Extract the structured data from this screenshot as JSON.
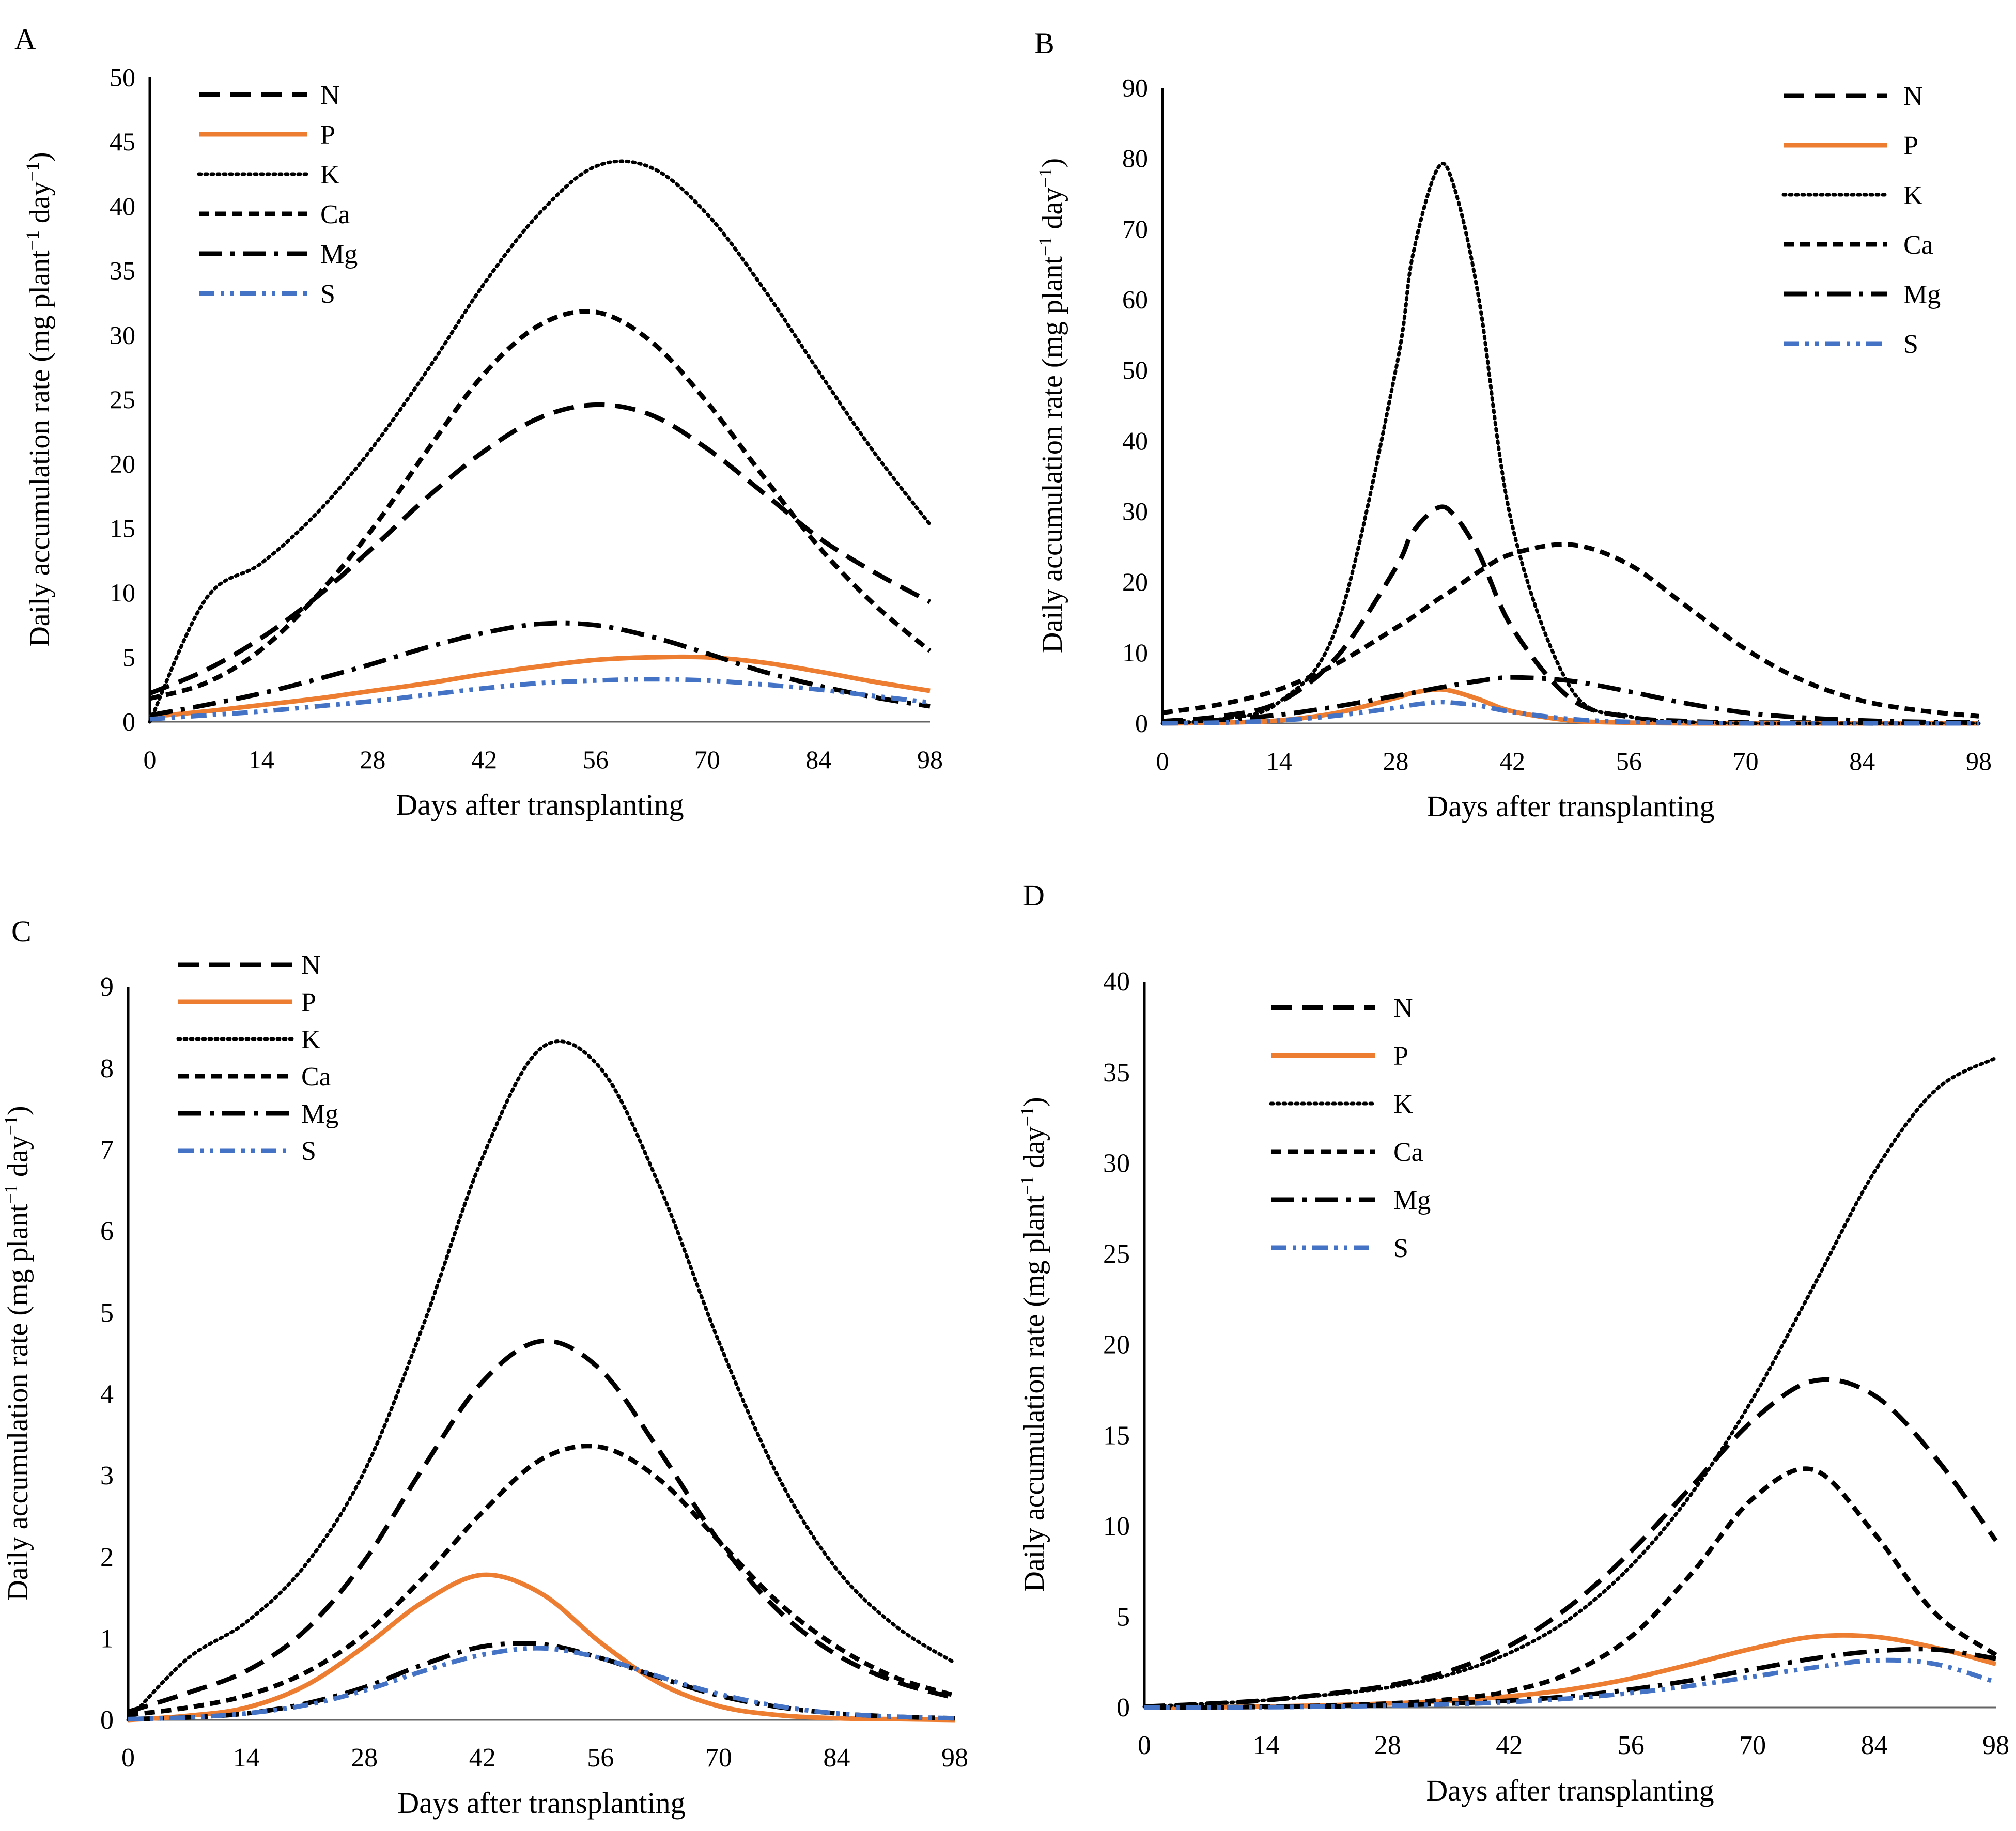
{
  "figure": {
    "xlabel": "Days after transplanting",
    "ylabel_main": "Daily accumulation rate (mg plant",
    "ylabel_sup1": "−1",
    "ylabel_mid": " day",
    "ylabel_sup2": "−1",
    "ylabel_end": ")"
  },
  "chart_data": [
    {
      "panel": "A",
      "type": "line",
      "xlabel": "Days after transplanting",
      "ylabel": "Daily accumulation rate (mg plant−1 day−1)",
      "xticks": [
        0,
        14,
        28,
        42,
        56,
        70,
        84,
        98
      ],
      "yticks": [
        0,
        5,
        10,
        15,
        20,
        25,
        30,
        35,
        40,
        45,
        50
      ],
      "xlim": [
        0,
        98
      ],
      "ylim": [
        0,
        50
      ],
      "legend_position": "top-left",
      "x": [
        0,
        7,
        14,
        21,
        28,
        35,
        42,
        49,
        56,
        63,
        70,
        77,
        84,
        91,
        98
      ],
      "series": [
        {
          "name": "N",
          "style": "dash",
          "values": [
            2.2,
            4.0,
            6.5,
            9.7,
            13.5,
            17.5,
            21.0,
            23.6,
            24.6,
            23.8,
            21.2,
            17.8,
            14.3,
            11.6,
            9.3
          ]
        },
        {
          "name": "P",
          "style": "solid",
          "values": [
            0.4,
            0.8,
            1.3,
            1.8,
            2.4,
            3.0,
            3.7,
            4.3,
            4.8,
            5.0,
            5.0,
            4.6,
            3.9,
            3.1,
            2.4
          ]
        },
        {
          "name": "K",
          "style": "dot",
          "values": [
            0.0,
            9.5,
            12.3,
            16.2,
            21.3,
            27.4,
            34.0,
            39.5,
            43.1,
            43.0,
            39.4,
            33.7,
            27.2,
            20.9,
            15.3
          ]
        },
        {
          "name": "Ca",
          "style": "shortdash",
          "values": [
            1.8,
            3.0,
            5.6,
            9.8,
            15.0,
            21.2,
            27.0,
            30.8,
            31.8,
            29.5,
            24.8,
            19.1,
            13.6,
            9.1,
            5.5
          ]
        },
        {
          "name": "Mg",
          "style": "dashdot",
          "values": [
            0.5,
            1.3,
            2.2,
            3.3,
            4.5,
            5.8,
            6.9,
            7.6,
            7.5,
            6.6,
            5.3,
            3.9,
            2.8,
            1.9,
            1.2
          ]
        },
        {
          "name": "S",
          "style": "dashdotdot",
          "values": [
            0.2,
            0.5,
            0.8,
            1.2,
            1.6,
            2.1,
            2.6,
            3.0,
            3.2,
            3.3,
            3.2,
            2.9,
            2.5,
            2.0,
            1.5
          ]
        }
      ]
    },
    {
      "panel": "B",
      "type": "line",
      "xlabel": "Days after transplanting",
      "ylabel": "Daily accumulation rate (mg plant−1 day−1)",
      "xticks": [
        0,
        14,
        28,
        42,
        56,
        70,
        84,
        98
      ],
      "yticks": [
        0,
        10,
        20,
        30,
        40,
        50,
        60,
        70,
        80,
        90
      ],
      "xlim": [
        0,
        98
      ],
      "ylim": [
        0,
        90
      ],
      "legend_position": "top-right",
      "x": [
        0,
        7,
        14,
        21,
        28,
        30,
        33,
        35,
        38,
        42,
        49,
        56,
        63,
        70,
        77,
        84,
        91,
        98
      ],
      "series": [
        {
          "name": "N",
          "style": "dash",
          "values": [
            0.3,
            1.0,
            3.0,
            9.5,
            22.0,
            27.0,
            30.5,
            29.5,
            24.0,
            13.5,
            3.5,
            0.9,
            0.3,
            0.1,
            0.1,
            0.0,
            0.0,
            0.0
          ]
        },
        {
          "name": "P",
          "style": "solid",
          "values": [
            0.0,
            0.1,
            0.4,
            1.5,
            3.6,
            4.3,
            4.8,
            4.5,
            3.4,
            1.7,
            0.4,
            0.1,
            0.0,
            0.0,
            0.0,
            0.0,
            0.0,
            0.0
          ]
        },
        {
          "name": "K",
          "style": "dot",
          "values": [
            0.0,
            0.6,
            3.0,
            14.0,
            50.0,
            66.0,
            78.5,
            76.0,
            60.0,
            28.0,
            5.0,
            1.0,
            0.2,
            0.0,
            0.0,
            0.0,
            0.0,
            0.0
          ]
        },
        {
          "name": "Ca",
          "style": "shortdash",
          "values": [
            1.5,
            2.7,
            4.8,
            8.5,
            13.5,
            15.0,
            17.5,
            19.0,
            21.5,
            24.0,
            25.3,
            22.5,
            16.5,
            10.5,
            6.0,
            3.2,
            1.8,
            1.0
          ]
        },
        {
          "name": "Mg",
          "style": "dashdot",
          "values": [
            0.2,
            0.5,
            1.2,
            2.4,
            3.9,
            4.3,
            5.0,
            5.4,
            6.0,
            6.5,
            6.0,
            4.5,
            2.8,
            1.5,
            0.8,
            0.4,
            0.2,
            0.1
          ]
        },
        {
          "name": "S",
          "style": "dashdotdot",
          "values": [
            0.0,
            0.1,
            0.4,
            1.1,
            2.2,
            2.6,
            3.0,
            2.9,
            2.5,
            1.6,
            0.6,
            0.2,
            0.1,
            0.0,
            0.0,
            0.0,
            0.0,
            0.0
          ]
        }
      ]
    },
    {
      "panel": "C",
      "type": "line",
      "xlabel": "Days after transplanting",
      "ylabel": "Daily accumulation rate (mg plant−1 day−1)",
      "xticks": [
        0,
        14,
        28,
        42,
        56,
        70,
        84,
        98
      ],
      "yticks": [
        0,
        1,
        2,
        3,
        4,
        5,
        6,
        7,
        8,
        9
      ],
      "xlim": [
        0,
        98
      ],
      "ylim": [
        0,
        9
      ],
      "legend_position": "top-left",
      "x": [
        0,
        7,
        14,
        21,
        28,
        35,
        42,
        49,
        56,
        63,
        70,
        77,
        84,
        91,
        98
      ],
      "series": [
        {
          "name": "N",
          "style": "dash",
          "values": [
            0.1,
            0.33,
            0.6,
            1.1,
            1.95,
            3.1,
            4.15,
            4.65,
            4.3,
            3.3,
            2.2,
            1.35,
            0.8,
            0.47,
            0.27
          ]
        },
        {
          "name": "P",
          "style": "solid",
          "values": [
            0.0,
            0.05,
            0.15,
            0.42,
            0.9,
            1.45,
            1.78,
            1.55,
            0.95,
            0.45,
            0.17,
            0.06,
            0.02,
            0.01,
            0.0
          ]
        },
        {
          "name": "K",
          "style": "dot",
          "values": [
            0.0,
            0.75,
            1.2,
            1.9,
            3.05,
            4.85,
            6.9,
            8.25,
            8.0,
            6.55,
            4.65,
            3.0,
            1.85,
            1.15,
            0.7
          ]
        },
        {
          "name": "Ca",
          "style": "shortdash",
          "values": [
            0.06,
            0.15,
            0.3,
            0.58,
            1.05,
            1.75,
            2.55,
            3.2,
            3.35,
            2.95,
            2.2,
            1.45,
            0.9,
            0.52,
            0.3
          ]
        },
        {
          "name": "Mg",
          "style": "dashdot",
          "values": [
            0.01,
            0.03,
            0.08,
            0.2,
            0.4,
            0.68,
            0.9,
            0.93,
            0.76,
            0.52,
            0.3,
            0.16,
            0.08,
            0.04,
            0.02
          ]
        },
        {
          "name": "S",
          "style": "dashdotdot",
          "values": [
            0.01,
            0.03,
            0.08,
            0.18,
            0.36,
            0.6,
            0.8,
            0.88,
            0.76,
            0.53,
            0.32,
            0.17,
            0.08,
            0.04,
            0.02
          ]
        }
      ]
    },
    {
      "panel": "D",
      "type": "line",
      "xlabel": "Days after transplanting",
      "ylabel": "Daily accumulation rate (mg plant−1 day−1)",
      "xticks": [
        0,
        14,
        28,
        42,
        56,
        70,
        84,
        98
      ],
      "yticks": [
        0,
        5,
        10,
        15,
        20,
        25,
        30,
        35,
        40
      ],
      "xlim": [
        0,
        98
      ],
      "ylim": [
        0,
        40
      ],
      "legend_position": "top-left",
      "x": [
        0,
        7,
        14,
        21,
        28,
        35,
        42,
        49,
        56,
        63,
        70,
        77,
        84,
        91,
        98
      ],
      "series": [
        {
          "name": "N",
          "style": "dash",
          "values": [
            0.05,
            0.2,
            0.4,
            0.75,
            1.2,
            2.0,
            3.4,
            5.6,
            8.6,
            12.2,
            15.8,
            18.0,
            17.2,
            13.8,
            9.2
          ]
        },
        {
          "name": "P",
          "style": "solid",
          "values": [
            0.0,
            0.01,
            0.05,
            0.12,
            0.22,
            0.38,
            0.62,
            1.0,
            1.6,
            2.4,
            3.25,
            3.9,
            3.9,
            3.3,
            2.4
          ]
        },
        {
          "name": "K",
          "style": "dot",
          "values": [
            0.05,
            0.2,
            0.4,
            0.7,
            1.1,
            1.8,
            3.0,
            4.9,
            7.8,
            11.8,
            17.0,
            23.2,
            29.5,
            34.0,
            35.8
          ]
        },
        {
          "name": "Ca",
          "style": "shortdash",
          "values": [
            0.0,
            0.01,
            0.05,
            0.1,
            0.22,
            0.45,
            0.9,
            1.9,
            3.9,
            7.4,
            11.5,
            13.1,
            9.6,
            5.2,
            2.9
          ]
        },
        {
          "name": "Mg",
          "style": "dashdot",
          "values": [
            0.0,
            0.01,
            0.03,
            0.06,
            0.12,
            0.22,
            0.38,
            0.62,
            1.0,
            1.5,
            2.1,
            2.7,
            3.1,
            3.2,
            2.7
          ]
        },
        {
          "name": "S",
          "style": "dashdotdot",
          "values": [
            0.0,
            0.01,
            0.02,
            0.05,
            0.1,
            0.18,
            0.3,
            0.5,
            0.8,
            1.2,
            1.7,
            2.2,
            2.6,
            2.4,
            1.4
          ]
        }
      ]
    }
  ],
  "style": {
    "P_color": "#ED7D31",
    "S_color": "#4472C4",
    "black": "#000000"
  }
}
